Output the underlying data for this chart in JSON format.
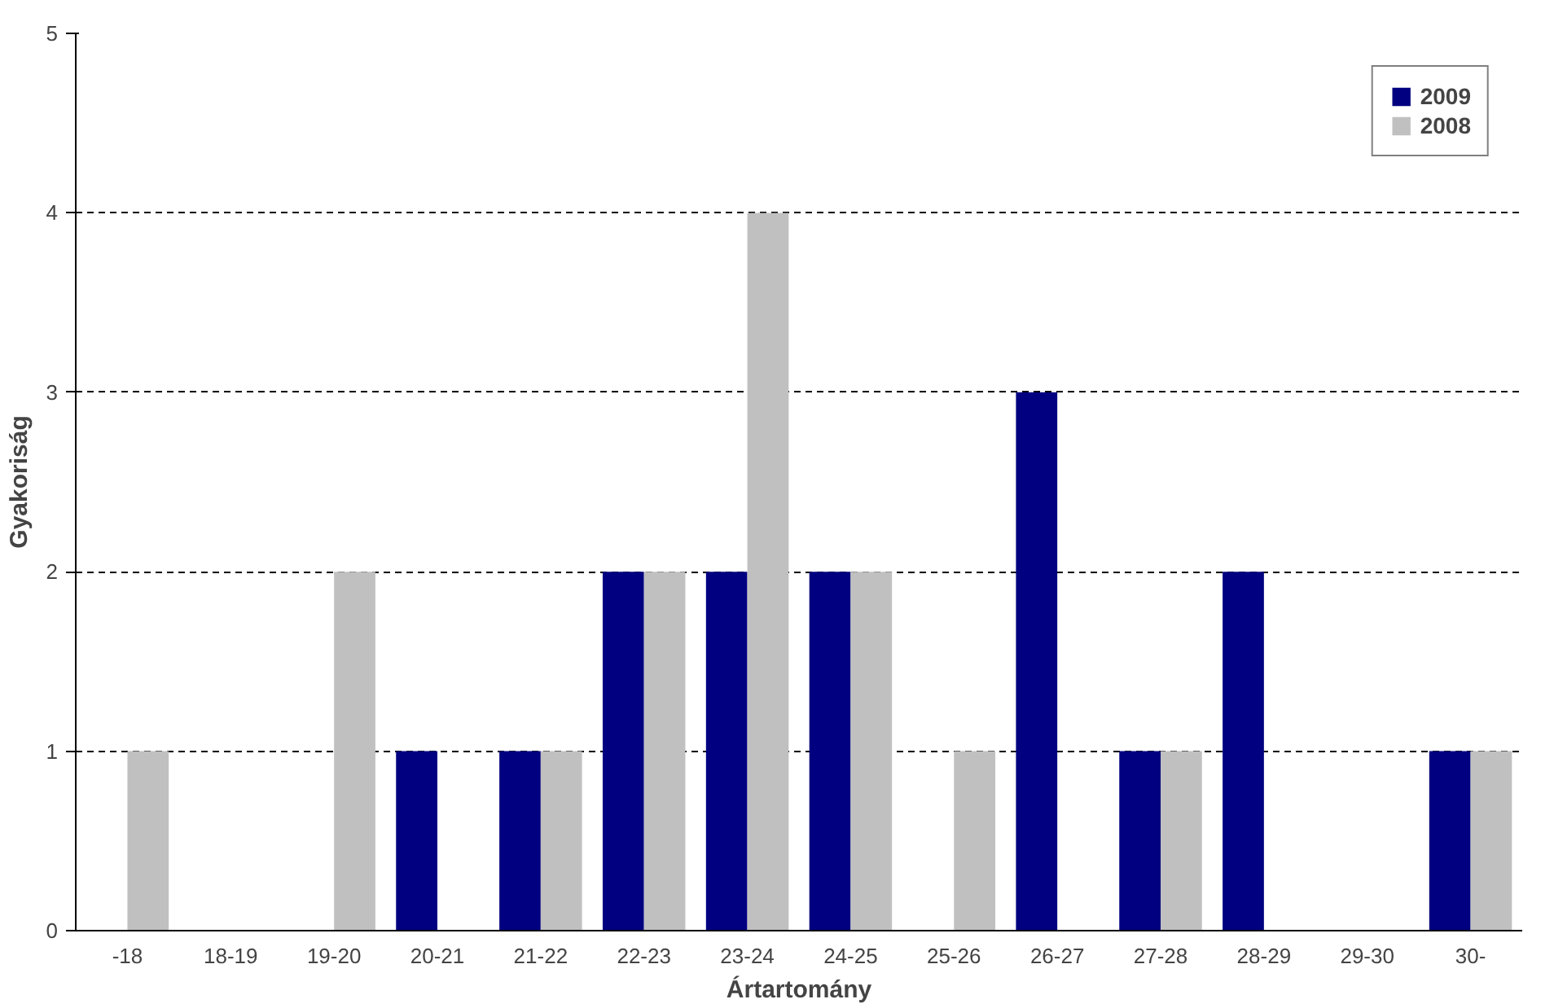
{
  "chart_data": {
    "type": "bar",
    "xlabel": "Ártartomány",
    "ylabel": "Gyakoriság",
    "categories": [
      "-18",
      "18-19",
      "19-20",
      "20-21",
      "21-22",
      "22-23",
      "23-24",
      "24-25",
      "25-26",
      "26-27",
      "27-28",
      "28-29",
      "29-30",
      "30-"
    ],
    "series": [
      {
        "name": "2009",
        "color": "#000080",
        "values": [
          0,
          0,
          0,
          1,
          1,
          2,
          2,
          2,
          0,
          3,
          1,
          2,
          0,
          1
        ]
      },
      {
        "name": "2008",
        "color": "#c0c0c0",
        "values": [
          1,
          0,
          2,
          0,
          1,
          2,
          4,
          2,
          1,
          0,
          1,
          0,
          0,
          1
        ]
      }
    ],
    "ylim": [
      0,
      5
    ],
    "yticks": [
      0,
      1,
      2,
      3,
      4,
      5
    ],
    "grid": "y",
    "legend": "top right"
  }
}
